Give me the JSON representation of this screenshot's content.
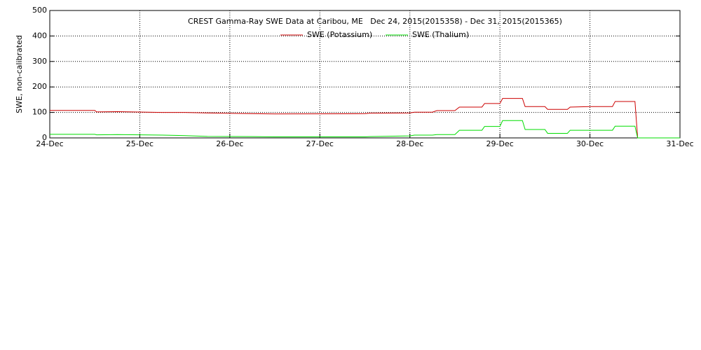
{
  "chart_data": {
    "type": "line",
    "title": "CREST Gamma-Ray SWE Data at Caribou, ME   Dec 24, 2015(2015358) - Dec 31, 2015(2015365)",
    "y_label": "SWE, non-calibrated",
    "x": [
      24,
      24.5,
      24.52,
      24.75,
      25.25,
      25.5,
      25.75,
      26.25,
      26.5,
      27.5,
      27.55,
      28,
      28.05,
      28.25,
      28.3,
      28.5,
      28.55,
      28.8,
      28.83,
      29,
      29.03,
      29.25,
      29.28,
      29.5,
      29.53,
      29.75,
      29.78,
      30,
      30.25,
      30.28,
      30.5,
      30.53,
      31
    ],
    "series": [
      {
        "name": "SWE (Potassium)",
        "color": "#cc0000",
        "values": [
          108,
          108,
          102,
          103,
          100,
          100,
          98,
          95,
          94,
          95,
          97,
          98,
          101,
          101,
          107,
          107,
          121,
          121,
          135,
          135,
          155,
          155,
          123,
          123,
          112,
          112,
          121,
          123,
          123,
          143,
          143,
          0,
          0
        ]
      },
      {
        "name": "SWE (Thalium)",
        "color": "#00dd00",
        "values": [
          14,
          14,
          12,
          13,
          11,
          9,
          6,
          5,
          4,
          4,
          5,
          8,
          11,
          11,
          13,
          13,
          30,
          30,
          45,
          45,
          68,
          68,
          33,
          33,
          18,
          18,
          30,
          30,
          30,
          46,
          46,
          0,
          0
        ]
      }
    ],
    "xlim": [
      24,
      31
    ],
    "xticks": [
      {
        "value": 24,
        "label": "24-Dec"
      },
      {
        "value": 25,
        "label": "25-Dec"
      },
      {
        "value": 26,
        "label": "26-Dec"
      },
      {
        "value": 27,
        "label": "27-Dec"
      },
      {
        "value": 28,
        "label": "28-Dec"
      },
      {
        "value": 29,
        "label": "29-Dec"
      },
      {
        "value": 30,
        "label": "30-Dec"
      },
      {
        "value": 31,
        "label": "31-Dec"
      }
    ],
    "ylim": [
      0,
      500
    ],
    "yticks": [
      0,
      100,
      200,
      300,
      400,
      500
    ],
    "grid": true
  }
}
